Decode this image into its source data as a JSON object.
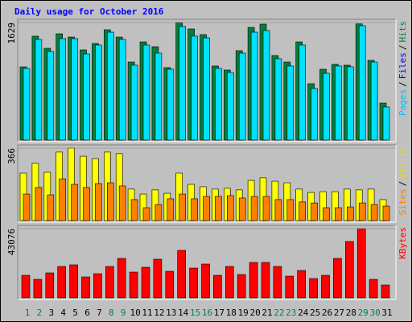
{
  "legend_separator": "/",
  "chart_data": [
    {
      "type": "bar",
      "title": "Daily usage for October 2016",
      "ylim": [
        0,
        1629
      ],
      "yticks": [
        1629
      ],
      "legend": [
        {
          "label": "Pages",
          "color": "#00c0ff"
        },
        {
          "label": "Files",
          "color": "#0000ff"
        },
        {
          "label": "Hits",
          "color": "#008040"
        }
      ],
      "series": [
        {
          "color": "#008040",
          "values": [
            1015,
            1440,
            1272,
            1473,
            1428,
            1250,
            1339,
            1529,
            1428,
            1082,
            1361,
            1294,
            1004,
            1629,
            1540,
            1462,
            1027,
            971,
            1239,
            1562,
            1607,
            1172,
            1082,
            1361,
            781,
            982,
            1049,
            1038,
            1610,
            1105,
            513
          ]
        },
        {
          "color": "#00e0ff",
          "values": [
            993,
            1395,
            1228,
            1406,
            1406,
            1194,
            1317,
            1495,
            1395,
            1038,
            1317,
            1205,
            982,
            1574,
            1440,
            1417,
            993,
            937,
            1205,
            1495,
            1518,
            1127,
            1027,
            1317,
            714,
            926,
            1027,
            1016,
            1585,
            1082,
            458
          ]
        }
      ]
    },
    {
      "type": "bar",
      "ylim": [
        0,
        366
      ],
      "yticks": [
        366
      ],
      "legend": [
        {
          "label": "Sites",
          "color": "#ff8000"
        },
        {
          "label": "Visits",
          "color": "#e0e000"
        }
      ],
      "series": [
        {
          "color": "#ffff00",
          "values": [
            240,
            289,
            244,
            346,
            366,
            325,
            313,
            346,
            338,
            159,
            134,
            155,
            138,
            240,
            183,
            171,
            159,
            163,
            155,
            203,
            216,
            199,
            191,
            159,
            142,
            146,
            146,
            159,
            155,
            159,
            106
          ]
        },
        {
          "color": "#ff8000",
          "values": [
            134,
            167,
            130,
            211,
            183,
            167,
            187,
            191,
            175,
            106,
            65,
            81,
            110,
            134,
            110,
            122,
            122,
            126,
            114,
            122,
            122,
            106,
            106,
            94,
            89,
            65,
            65,
            69,
            89,
            81,
            73
          ]
        }
      ]
    },
    {
      "type": "bar",
      "ylim": [
        0,
        43076
      ],
      "yticks": [
        43076
      ],
      "legend": [
        {
          "label": "KBytes",
          "color": "#ff0000"
        }
      ],
      "categories": [
        "1",
        "2",
        "3",
        "4",
        "5",
        "6",
        "7",
        "8",
        "9",
        "10",
        "11",
        "12",
        "13",
        "14",
        "15",
        "16",
        "17",
        "18",
        "19",
        "20",
        "21",
        "22",
        "23",
        "24",
        "25",
        "26",
        "27",
        "28",
        "29",
        "30",
        "31"
      ],
      "category_colors": [
        "#00805c",
        "#00805c",
        "#000000",
        "#000000",
        "#000000",
        "#000000",
        "#000000",
        "#00805c",
        "#00805c",
        "#000000",
        "#000000",
        "#000000",
        "#000000",
        "#000000",
        "#00805c",
        "#00805c",
        "#000000",
        "#000000",
        "#000000",
        "#000000",
        "#000000",
        "#00805c",
        "#00805c",
        "#000000",
        "#000000",
        "#000000",
        "#000000",
        "#000000",
        "#00805c",
        "#00805c",
        "#000000"
      ],
      "series": [
        {
          "color": "#ff0000",
          "values": [
            14025,
            11521,
            15528,
            19535,
            20537,
            13023,
            15027,
            19535,
            24544,
            16029,
            19034,
            24043,
            16530,
            29553,
            18533,
            21038,
            14025,
            19535,
            14526,
            22040,
            22040,
            19535,
            13524,
            17031,
            12022,
            14025,
            24544,
            35063,
            43076,
            11521,
            8014
          ]
        }
      ]
    }
  ]
}
